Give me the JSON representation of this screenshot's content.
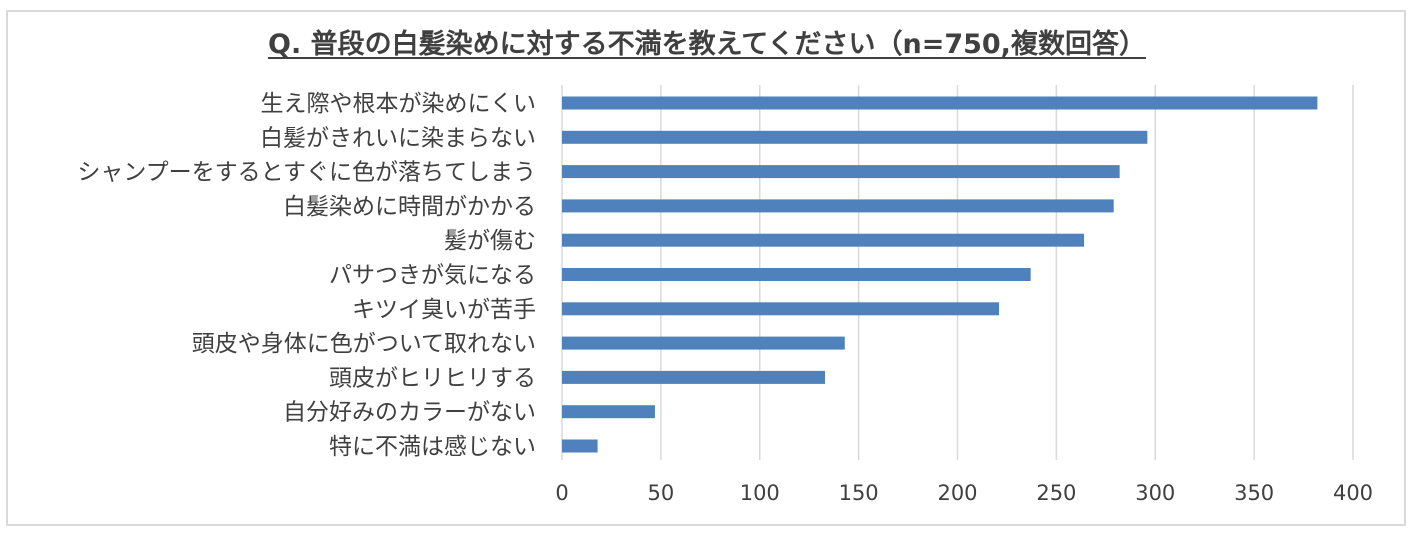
{
  "chart_data": {
    "type": "bar",
    "orientation": "horizontal",
    "title": "Q. 普段の白髪染めに対する不満を教えてください（n=750,複数回答）",
    "categories": [
      "生え際や根本が染めにくい",
      "白髪がきれいに染まらない",
      "シャンプーをするとすぐに色が落ちてしまう",
      "白髪染めに時間がかかる",
      "髪が傷む",
      "パサつきが気になる",
      "キツイ臭いが苦手",
      "頭皮や身体に色がついて取れない",
      "頭皮がヒリヒリする",
      "自分好みのカラーがない",
      "特に不満は感じない"
    ],
    "values": [
      382,
      296,
      282,
      279,
      264,
      237,
      221,
      143,
      133,
      47,
      18
    ],
    "xlim": [
      0,
      400
    ],
    "xticks": [
      0,
      50,
      100,
      150,
      200,
      250,
      300,
      350,
      400
    ],
    "grid": true,
    "bar_color": "#4f81bd"
  }
}
